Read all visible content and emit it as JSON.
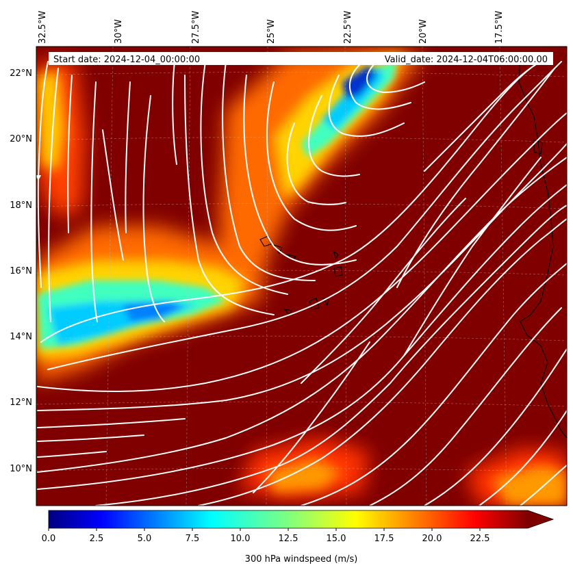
{
  "map": {
    "start_date": "Start date: 2024-12-04_00:00:00",
    "valid_date": "Valid_date: 2024-12-04T06:00:00.00",
    "lon_labels": [
      "32.5°W",
      "30°W",
      "27.5°W",
      "25°W",
      "22.5°W",
      "20°W",
      "17.5°W"
    ],
    "lat_labels": [
      "22°N",
      "20°N",
      "18°N",
      "16°N",
      "14°N",
      "12°N",
      "10°N"
    ],
    "background_color": "#800000",
    "streamline_color": "#ffffff",
    "coastline_color": "#000000"
  },
  "colorbar": {
    "label": "300 hPa windspeed (m/s)",
    "ticks": [
      "0.0",
      "2.5",
      "5.0",
      "7.5",
      "10.0",
      "12.5",
      "15.0",
      "17.5",
      "20.0",
      "22.5"
    ],
    "vmin": 0,
    "vmax": 25,
    "extend": "max",
    "colormap": "jet"
  }
}
